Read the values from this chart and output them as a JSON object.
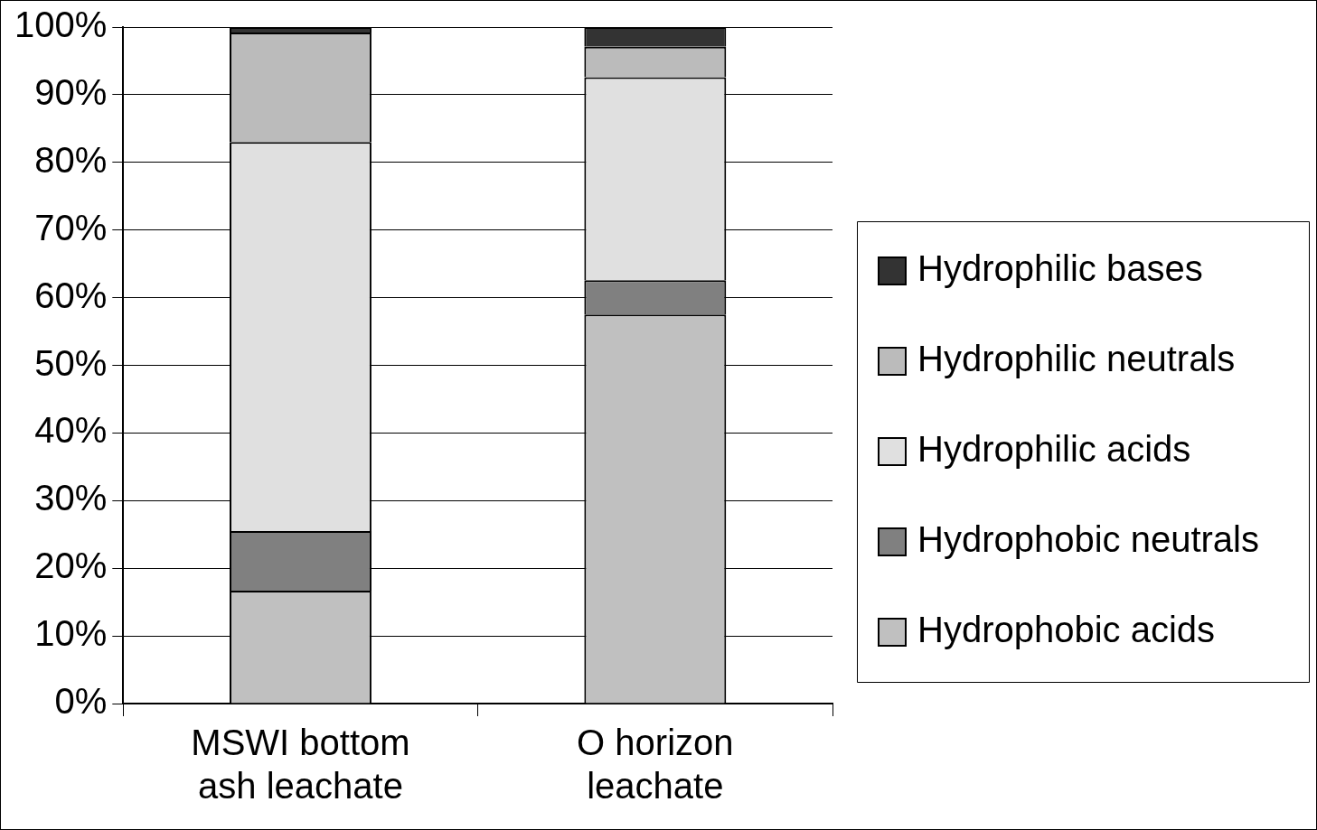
{
  "chart_data": {
    "type": "bar",
    "stacked": true,
    "categories": [
      "MSWI bottom ash leachate",
      "O horizon leachate"
    ],
    "series": [
      {
        "name": "Hydrophobic acids",
        "color": "#c0c0c0",
        "values": [
          16.7,
          57.5
        ]
      },
      {
        "name": "Hydrophobic neutrals",
        "color": "#808080",
        "values": [
          8.8,
          5.1
        ]
      },
      {
        "name": "Hydrophilic acids",
        "color": "#e0e0e0",
        "values": [
          57.5,
          30.0
        ]
      },
      {
        "name": "Hydrophilic neutrals",
        "color": "#bbbbbb",
        "values": [
          16.2,
          4.5
        ]
      },
      {
        "name": "Hydrophilic bases",
        "color": "#333333",
        "values": [
          0.8,
          2.9
        ]
      }
    ],
    "ylim": [
      0,
      100
    ],
    "yticks": [
      {
        "value": 0,
        "label": "0%"
      },
      {
        "value": 10,
        "label": "10%"
      },
      {
        "value": 20,
        "label": "20%"
      },
      {
        "value": 30,
        "label": "30%"
      },
      {
        "value": 40,
        "label": "40%"
      },
      {
        "value": 50,
        "label": "50%"
      },
      {
        "value": 60,
        "label": "60%"
      },
      {
        "value": 70,
        "label": "70%"
      },
      {
        "value": 80,
        "label": "80%"
      },
      {
        "value": 90,
        "label": "90%"
      },
      {
        "value": 100,
        "label": "100%"
      }
    ],
    "grid": "y",
    "legend": "right"
  }
}
